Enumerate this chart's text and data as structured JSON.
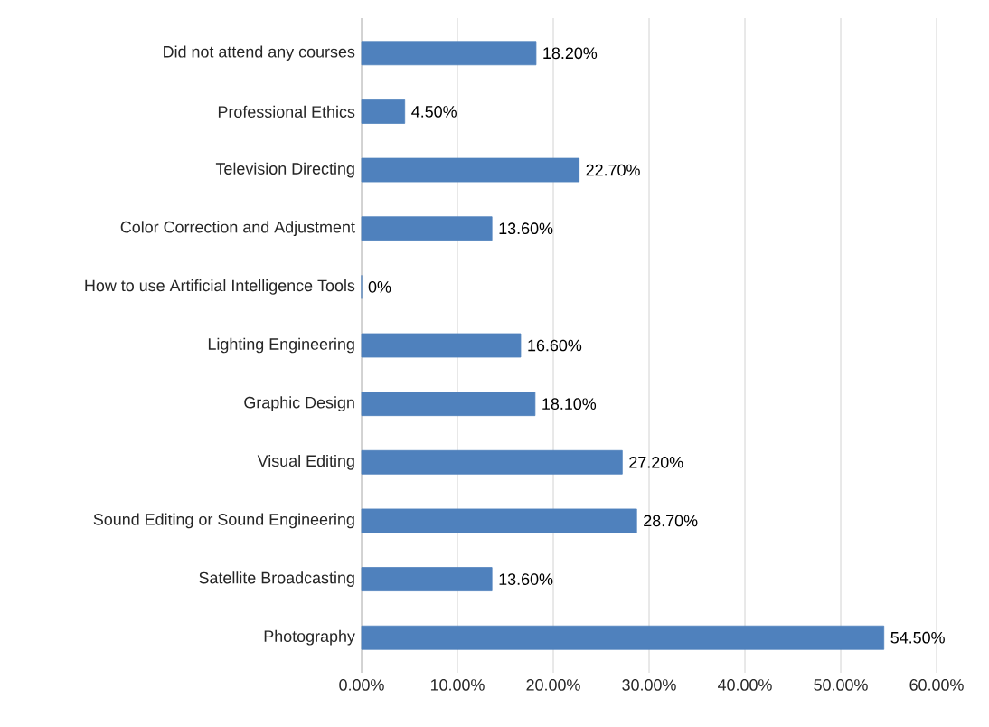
{
  "chart_data": {
    "type": "bar",
    "orientation": "horizontal",
    "categories": [
      "Did not attend any courses",
      "Professional Ethics",
      "Television Directing",
      "Color Correction and Adjustment",
      "How to use Artificial Intelligence Tools",
      "Lighting Engineering",
      "Graphic Design",
      "Visual Editing",
      "Sound Editing or Sound Engineering",
      "Satellite Broadcasting",
      "Photography"
    ],
    "values": [
      18.2,
      4.5,
      22.7,
      13.6,
      0,
      16.6,
      18.1,
      27.2,
      28.7,
      13.6,
      54.5
    ],
    "value_labels": [
      "18.20%",
      "4.50%",
      "22.70%",
      "13.60%",
      "0%",
      "16.60%",
      "18.10%",
      "27.20%",
      "28.70%",
      "13.60%",
      "54.50%"
    ],
    "color": "#4f81bd",
    "xlim": [
      0,
      60
    ],
    "xticks": [
      {
        "value": 0,
        "label": "0.00%"
      },
      {
        "value": 10,
        "label": "10.00%"
      },
      {
        "value": 20,
        "label": "20.00%"
      },
      {
        "value": 30,
        "label": "30.00%"
      },
      {
        "value": 40,
        "label": "40.00%"
      },
      {
        "value": 50,
        "label": "50.00%"
      },
      {
        "value": 60,
        "label": "60.00%"
      }
    ],
    "grid": "x"
  }
}
